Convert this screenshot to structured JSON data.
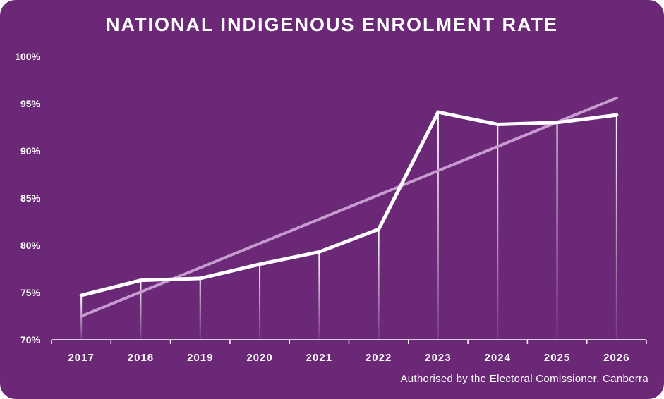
{
  "colors": {
    "background": "#6b2877",
    "line": "#ffffff",
    "trend": "#c79ad0",
    "axis": "#ffffff"
  },
  "chart_data": {
    "type": "line",
    "title": "NATIONAL INDIGENOUS ENROLMENT RATE",
    "categories": [
      "2017",
      "2018",
      "2019",
      "2020",
      "2021",
      "2022",
      "2023",
      "2024",
      "2025",
      "2026"
    ],
    "series": [
      {
        "values": [
          74.7,
          76.3,
          76.5,
          78.0,
          79.3,
          81.7,
          94.1,
          92.8,
          93.0,
          93.8
        ]
      }
    ],
    "trendline": {
      "start": 72.5,
      "end": 95.6
    },
    "ylim": [
      70,
      100
    ],
    "yticks": [
      70,
      75,
      80,
      85,
      90,
      95,
      100
    ],
    "ytick_labels": [
      "70%",
      "75%",
      "80%",
      "85%",
      "90%",
      "95%",
      "100%"
    ],
    "xlabel": "",
    "ylabel": "",
    "grid": false,
    "drop_lines": true
  },
  "footer": "Authorised by the Electoral Comissioner, Canberra"
}
